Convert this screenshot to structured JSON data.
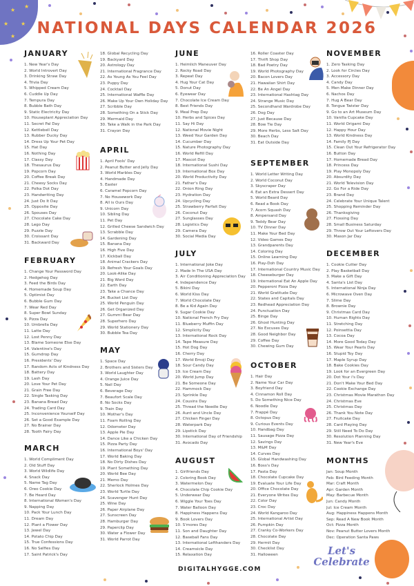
{
  "title": "NATIONAL DAYS CALENDAR 2026",
  "footer": "DIGITALHYGGE.COM",
  "colors": {
    "title": "#d9593a",
    "moon": "#6f74c2",
    "balloon_orange": "#f28a3b",
    "balloon_pink": "#f7d3c6"
  },
  "decoration_text": "Let's Celebrate",
  "sections": [
    {
      "id": "january",
      "heading": "JANUARY",
      "days": [
        "1. New Year's Day",
        "2. World Introvert Day",
        "3. Drinking Straw Day",
        "4. Trivia Day",
        "5. Whipped Cream Day",
        "6. Cuddle Up Day",
        "7. Tempura Day",
        "8. Bubble Bath Day",
        "9. Static Electricity Day",
        "10. Houseplant Appreciation Day",
        "11. Secret Pal Day",
        "12. Kettlebell Day",
        "13. Rubber Ducky Day",
        "14. Dress Up Your Pet Day",
        "15. Hat Day",
        "16. Nothing Day",
        "17. Classy Day",
        "18. Thesaurus Day",
        "19. Popcorn Day",
        "20. Coffee Break Day",
        "21. Cheesy Socks Day",
        "22. Polka Dot Day",
        "23. Handwriting Day",
        "24. Just Do It Day",
        "25. Opposite Day",
        "26. Spouses Day",
        "27. Chocolate Cake Day",
        "28. Lego Day",
        "29. Puzzle Day",
        "30. Croissant Day",
        "31. Backward Day"
      ]
    },
    {
      "id": "february",
      "heading": "FEBRUARY",
      "days": [
        "1. Change Your Password Day",
        "2. Hedgehog Day",
        "3. Feed the Birds Day",
        "4. Homemade Soup Day",
        "5. Optimist Day",
        "6. Bubble Gum Day",
        "7. Wear Red Day",
        "8. Super Bowl Sunday",
        "9. Pizza Day",
        "10. Umbrella Day",
        "11. Latte Day",
        "12. Lost Penny Day",
        "13. Blame Someone Else Day",
        "14. Valentine's Day",
        "15. Gumdrop Day",
        "16. Presidents' Day",
        "17. Random Acts of Kindness Day",
        "18. Battery Day",
        "19. Lash Day",
        "20. Love Your Pet Day",
        "21. Grain Free Day",
        "22. Single Tasking Day",
        "23. Banana Bread Day",
        "24. Trading Card Day",
        "25. Inconvenience Yourself Day",
        "26. Set a Good Example Day",
        "27. No Brainer Day",
        "28. Tooth Fairy Day"
      ]
    },
    {
      "id": "march",
      "heading": "MARCH",
      "days": [
        "1. World Compliment Day",
        "2. Old Stuff Day",
        "3. World Wildlife Day",
        "4. Snack Day",
        "5. Name Tag Day",
        "6. Oreo Cookie Day",
        "7. Be Heard Day",
        "8. International Women's Day",
        "9. Napping Day",
        "10. Pack Your Lunch Day",
        "11. Dream Day",
        "12. Plant a Flower Day",
        "13. Jewel Day",
        "14. Potato Chip Day",
        "15. True Confessions Day",
        "16. No Selfies Day",
        "17. Saint Patrick's Day"
      ]
    },
    {
      "id": "march-cont",
      "heading": "",
      "days": [
        "18. Global Recycling Day",
        "19. Backyard Day",
        "20. Astrology Day",
        "21. International Fragrance Day",
        "22. As Young As You Feel Day",
        "23. Puppy Day",
        "24. Cocktail Day",
        "25. International Waffle Day",
        "26. Make Up Your Own Holiday Day",
        "27. Scribble Day",
        "28. Something On a Stick Day",
        "29. Mermaid Day",
        "30. Take a Walk in the Park Day",
        "31. Crayon Day"
      ]
    },
    {
      "id": "april",
      "heading": "APRIL",
      "days": [
        "1. April Fools' Day",
        "2. Peanut Butter and Jelly Day",
        "3. World Marbles Day",
        "4. Handmade Day",
        "5. Easter",
        "6. Caramel Popcorn Day",
        "7. No Housework Day",
        "8. All is Ours Day",
        "9. Unicorn Day",
        "10. Sibling Day",
        "11. Pet Day",
        "12. Grilled Cheese Sandwich Day",
        "13. Scrabble Day",
        "14. Gardening Day",
        "15. Banana Day",
        "16. High Five Day",
        "17. Kickball Day",
        "18. Animal Crackers Day",
        "19. Refresh Your Goals Day",
        "20. Look-Alike Day",
        "21. Big Word Day",
        "22. Earth Day",
        "23. Take a Chance Day",
        "24. Bucket List Day",
        "25. World Penguin Day",
        "26. Get Organized Day",
        "27. Gummi Bear Day",
        "28. Superhero Day",
        "29. World Stationery Day",
        "30. Bubble Tea Day"
      ]
    },
    {
      "id": "may",
      "heading": "MAY",
      "days": [
        "1. Space Day",
        "2. Brothers and Sisters Day",
        "3. World Laughter Day",
        "4. Orange Juice Day",
        "5. Nail Day",
        "6. Beverage Day",
        "7. Beaufort Scale Day",
        "8. No Socks Day",
        "9. Train Day",
        "10. Mother's Day",
        "11. Foam Rolling Day",
        "12. Odometer Day",
        "13. Apple Pie Day",
        "14. Dance Like a Chicken Day",
        "15. Pizza Party Day",
        "16. International Boys' Day",
        "17. World Baking Day",
        "18. No Dirty Dishes Day",
        "19. Plant Something Day",
        "20. World Bee Day",
        "21. Memo Day",
        "22. Sherlock Holmes Day",
        "23. World Turtle Day",
        "24. Scavenger Hunt Day",
        "25. Wine Day",
        "26. Paper Airplane Day",
        "27. Sunscreen Day",
        "28. Hamburger Day",
        "29. Paperclip Day",
        "30. Water a Flower Day",
        "31. World Parrot Day"
      ]
    },
    {
      "id": "june",
      "heading": "JUNE",
      "days": [
        "1. Heimlich Maneuver Day",
        "2. Rocky Road Day",
        "3. Repeat Day",
        "4. Hug Your Cat Day",
        "5. Donut Day",
        "6. Eyewear Day",
        "7. Chocolate Ice Cream Day",
        "8. Best Friends Day",
        "9. Meal Prep Day",
        "10. Herbs and Spices Day",
        "11. Say Hi Day",
        "12. National Movie Night",
        "13. Weed Your Garden Day",
        "14. Cucumber Day",
        "15. Nature Photography Day",
        "16. World Refill Day",
        "17. Mascot Day",
        "18. International Sushi Day",
        "19. International Box Day",
        "20. World Productivity Day",
        "21. Father's Day",
        "22. Onion Ring Day",
        "23. Hydration Day",
        "24. Upcycling Day",
        "25. Strawberry Parfait Day",
        "26. Coconut Day",
        "27. Sunglasses Day",
        "28. Logistics Day",
        "29. Camera Day",
        "30. Social Media Day"
      ]
    },
    {
      "id": "july",
      "heading": "JULY",
      "days": [
        "1. International Joke Day",
        "2. Made In The USA Day",
        "3. Air Conditioning Appreciation Day",
        "4. Independence Day",
        "5. Bikini Day",
        "6. World Kiss Day",
        "7. World Chocolate Day",
        "8. Be a Kid Again Day",
        "9. Sugar Cookie Day",
        "10. National French Fry Day",
        "11. Blueberry Muffin Day",
        "12. Simplicity Day",
        "13. International Rock Day",
        "14. Tape Measure Day",
        "15. Hot Dog Day",
        "16. Cherry Day",
        "17. World Emoji Day",
        "18. Sour Candy Day",
        "19. Ice Cream Day",
        "20. World Jump Day",
        "21. Be Someone Day",
        "22. Hammock Day",
        "23. Sprinkle Day",
        "24. Cousins Day",
        "25. Thread the Needle Day",
        "26. Aunt and Uncle Day",
        "27. Chicken Finger Day",
        "28. Waterpark Day",
        "29. Lipstick Day",
        "30. International Day of Friendship",
        "31. Avocado Day"
      ]
    },
    {
      "id": "august",
      "heading": "AUGUST",
      "days": [
        "1. Girlfriends Day",
        "2. Coloring Book Day",
        "3. Watermelon Day",
        "4. Chocolate Chip Cookie Day",
        "5. Underwear Day",
        "6. Wiggle Your Toes Day",
        "7. Water Balloon Day",
        "8. Happiness Happens Day",
        "9. Book Lovers Day",
        "10. S'mores Day",
        "11. Son and Daughter Day",
        "12. Baseball Fans Day",
        "13. International Lefthanders Day",
        "14. Creamsicle Day",
        "15. Relaxation Day"
      ]
    },
    {
      "id": "august-cont",
      "heading": "",
      "days": [
        "16. Roller Coaster Day",
        "17. Thrift Shop Day",
        "18. Bad Poetry Day",
        "19. World Photography Day",
        "20. Bacon Lovers Day",
        "21. Hawaiian Shirt Day",
        "22. Be An Angel Day",
        "23. International Hashtag Day",
        "24. Strange Music Day",
        "25. Secondhand Wardrobe Day",
        "26. Dog Day",
        "27. Just Because Day",
        "28. Bow Tie Day",
        "29. More Herbs, Less Salt Day",
        "30. Beach Day",
        "31. Eat Outside Day"
      ]
    },
    {
      "id": "september",
      "heading": "SEPTEMBER",
      "days": [
        "1. World Letter Writing Day",
        "2. World Coconut Day",
        "3. Skyscraper Day",
        "4. Eat an Extra Dessert Day",
        "5. World Beard Day",
        "6. Read a Book Day",
        "7. Acorn Squash Day",
        "8. Ampersand Day",
        "9. Teddy Bear Day",
        "10. TV Dinner Day",
        "11. Make Your Bed Day",
        "12. Video Games Day",
        "13. Grandparents Day",
        "14. Coloring Day",
        "15. Online Learning Day",
        "16. Play-Doh Day",
        "17. International Country Music Day",
        "18. Cheeseburger Day",
        "19. International Eat An Apple Day",
        "20. Pepperoni Pizza Day",
        "21. World Gratitude Day",
        "22. States and Capitals Day",
        "23. Redhead Appreciation Day",
        "24. Punctuation Day",
        "25. Binge Day",
        "26. Ghost Hunting Day",
        "27. No Excuses Day",
        "28. Good Neighbor Day",
        "29. Coffee Day",
        "30. Chewing Gum Day"
      ]
    },
    {
      "id": "october",
      "heading": "OCTOBER",
      "days": [
        "1. Hair Day",
        "2. Name Your Car Day",
        "3. Boyfriend Day",
        "4. Cinnamon Roll Day",
        "5. Do Something Nice Day",
        "6. Noodle Day",
        "7. Frappé Day",
        "8. Octopus Day",
        "9. Curious Events Day",
        "10. Handbag Day",
        "11. Sausage Pizza Day",
        "12. Savings Day",
        "13. M&M Day",
        "14. Curves Day",
        "15. Global Handwashing Day",
        "16. Boss's Day",
        "17. Pasta Day",
        "18. Chocolate Cupcake Day",
        "19. Evaluate Your Life Day",
        "20. Office Chocolate Day",
        "21. Everyone Writes Day",
        "22. Color Day",
        "23. Croc Day",
        "24. World Kangaroo Day",
        "25. International Artist Day",
        "26. Pumpkin Day",
        "27. Cranky Co-Workers Day",
        "28. Chocolate Day",
        "29. Hermit Day",
        "30. Checklist Day",
        "31. Halloween"
      ]
    },
    {
      "id": "november",
      "heading": "NOVEMBER",
      "days": [
        "1. Zero Tasking Day",
        "2. Look for Circles Day",
        "3. Accessory Day",
        "4. Candy Day",
        "5. Men Make Dinner Day",
        "6. Nachos Day",
        "7. Hug A Bear Day",
        "8. Tongue Twister Day",
        "9. Go to an Art Museum Day",
        "10. Vanilla Cupcake Day",
        "11. World Origami Day",
        "12. Happy Hour Day",
        "13. World Kindness Day",
        "14. Family PJ Day",
        "15. Clean Out Your Refrigerator Day",
        "16. Button Day",
        "17. Homemade Bread Day",
        "18. Princess Day",
        "19. Play Monopoly Day",
        "20. Absurdity Day",
        "21. World Television Day",
        "22. Go For a Ride Day",
        "23. Brand Day",
        "24. Celebrate Your Unique Talent",
        "25. Shopping Reminder Day",
        "26. Thanksgiving",
        "27. Flossing Day",
        "28. Small Business Saturday",
        "29. Throw Out Your Leftovers Day",
        "30. Mason Jar Day"
      ]
    },
    {
      "id": "december",
      "heading": "DECEMBER",
      "days": [
        "1. Cookie Cutter Day",
        "2. Play Basketball Day",
        "3. Make a Gift Day",
        "4. Santa's List Day",
        "5. International Ninja Day",
        "6. Microwave Oven Day",
        "7. Slime Day",
        "8. Brownie Day",
        "9. Christmas Card Day",
        "10. Human Rights Day",
        "11. Stretching Day",
        "12. Poinsettia Day",
        "13. Cocoa Day",
        "14. More Good Today Day",
        "15. Wear Your Pearls Day",
        "16. Stupid Toy Day",
        "17. Maple Syrup Day",
        "18. Bake Cookies Day",
        "19. Look for an Evergreen Day",
        "20. Dot Your i's Day",
        "21. Don't Make Your Bed Day",
        "22. Cookie Exchange Day",
        "23. Christmas Movie Marathon Day",
        "24. Christmas Eve",
        "25. Christmas Day",
        "26. Thank You Note Day",
        "27. Fruitcake Day",
        "28. Card Playing Day",
        "29. Still Need To Do Day",
        "30. Resolution Planning Day",
        "31. New Year's Eve"
      ]
    },
    {
      "id": "months",
      "heading": "MONTHS",
      "days": [
        "Jan: Soup Month",
        "Feb: Bird Feeding Month",
        "Mar: Craft Month",
        "Apr: Garden Month",
        "May: Barbecue Month",
        "Jun: Candy Month",
        "Jul: Ice Cream Month",
        "Aug: Happiness Happens Month",
        "Sep: Read A New Book Month",
        "Oct: Pizza Month",
        "Nov: Peanut Butter Lovers Month",
        "Dec: Operation Santa Paws"
      ]
    }
  ]
}
